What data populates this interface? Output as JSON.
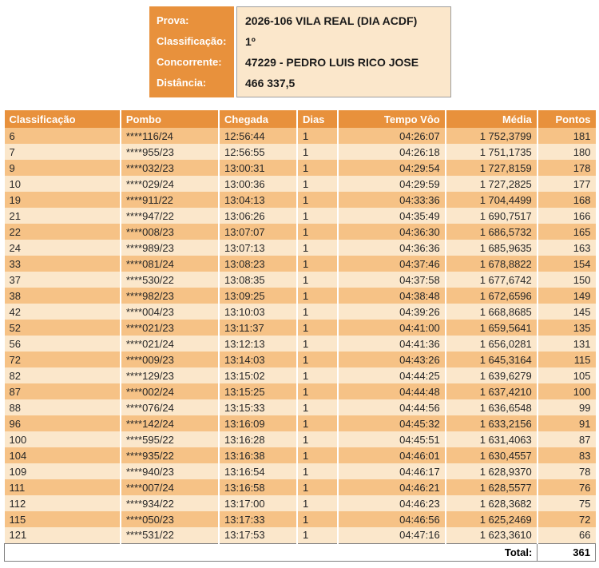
{
  "info": {
    "rows": [
      {
        "label": "Prova:",
        "value": "2026-106 VILA REAL (DIA ACDF)"
      },
      {
        "label": "Classificação:",
        "value": "1º"
      },
      {
        "label": "Concorrente:",
        "value": "47229 - PEDRO LUIS RICO JOSE"
      },
      {
        "label": "Distância:",
        "value": "466 337,5"
      }
    ]
  },
  "table": {
    "columns": [
      {
        "label": "Classificação",
        "align": "left"
      },
      {
        "label": "Pombo",
        "align": "left"
      },
      {
        "label": "Chegada",
        "align": "left"
      },
      {
        "label": "Dias",
        "align": "left"
      },
      {
        "label": "Tempo Vôo",
        "align": "right"
      },
      {
        "label": "Média",
        "align": "right"
      },
      {
        "label": "Pontos",
        "align": "right"
      }
    ],
    "rows": [
      [
        "6",
        "****116/24",
        "12:56:44",
        "1",
        "04:26:07",
        "1 752,3799",
        "181"
      ],
      [
        "7",
        "****955/23",
        "12:56:55",
        "1",
        "04:26:18",
        "1 751,1735",
        "180"
      ],
      [
        "9",
        "****032/23",
        "13:00:31",
        "1",
        "04:29:54",
        "1 727,8159",
        "178"
      ],
      [
        "10",
        "****029/24",
        "13:00:36",
        "1",
        "04:29:59",
        "1 727,2825",
        "177"
      ],
      [
        "19",
        "****911/22",
        "13:04:13",
        "1",
        "04:33:36",
        "1 704,4499",
        "168"
      ],
      [
        "21",
        "****947/22",
        "13:06:26",
        "1",
        "04:35:49",
        "1 690,7517",
        "166"
      ],
      [
        "22",
        "****008/23",
        "13:07:07",
        "1",
        "04:36:30",
        "1 686,5732",
        "165"
      ],
      [
        "24",
        "****989/23",
        "13:07:13",
        "1",
        "04:36:36",
        "1 685,9635",
        "163"
      ],
      [
        "33",
        "****081/24",
        "13:08:23",
        "1",
        "04:37:46",
        "1 678,8822",
        "154"
      ],
      [
        "37",
        "****530/22",
        "13:08:35",
        "1",
        "04:37:58",
        "1 677,6742",
        "150"
      ],
      [
        "38",
        "****982/23",
        "13:09:25",
        "1",
        "04:38:48",
        "1 672,6596",
        "149"
      ],
      [
        "42",
        "****004/23",
        "13:10:03",
        "1",
        "04:39:26",
        "1 668,8685",
        "145"
      ],
      [
        "52",
        "****021/23",
        "13:11:37",
        "1",
        "04:41:00",
        "1 659,5641",
        "135"
      ],
      [
        "56",
        "****021/24",
        "13:12:13",
        "1",
        "04:41:36",
        "1 656,0281",
        "131"
      ],
      [
        "72",
        "****009/23",
        "13:14:03",
        "1",
        "04:43:26",
        "1 645,3164",
        "115"
      ],
      [
        "82",
        "****129/23",
        "13:15:02",
        "1",
        "04:44:25",
        "1 639,6279",
        "105"
      ],
      [
        "87",
        "****002/24",
        "13:15:25",
        "1",
        "04:44:48",
        "1 637,4210",
        "100"
      ],
      [
        "88",
        "****076/24",
        "13:15:33",
        "1",
        "04:44:56",
        "1 636,6548",
        "99"
      ],
      [
        "96",
        "****142/24",
        "13:16:09",
        "1",
        "04:45:32",
        "1 633,2156",
        "91"
      ],
      [
        "100",
        "****595/22",
        "13:16:28",
        "1",
        "04:45:51",
        "1 631,4063",
        "87"
      ],
      [
        "104",
        "****935/22",
        "13:16:38",
        "1",
        "04:46:01",
        "1 630,4557",
        "83"
      ],
      [
        "109",
        "****940/23",
        "13:16:54",
        "1",
        "04:46:17",
        "1 628,9370",
        "78"
      ],
      [
        "111",
        "****007/24",
        "13:16:58",
        "1",
        "04:46:21",
        "1 628,5577",
        "76"
      ],
      [
        "112",
        "****934/22",
        "13:17:00",
        "1",
        "04:46:23",
        "1 628,3682",
        "75"
      ],
      [
        "115",
        "****050/23",
        "13:17:33",
        "1",
        "04:46:56",
        "1 625,2469",
        "72"
      ],
      [
        "121",
        "****531/22",
        "13:17:53",
        "1",
        "04:47:16",
        "1 623,3610",
        "66"
      ]
    ],
    "total_label": "Total:",
    "total_value": "361"
  },
  "colors": {
    "header_orange": "#E8913C",
    "row_dark": "#F6C286",
    "row_light": "#FBE7CB",
    "header_text": "#FFFFFF",
    "body_text": "#262626",
    "total_border": "#808080"
  }
}
